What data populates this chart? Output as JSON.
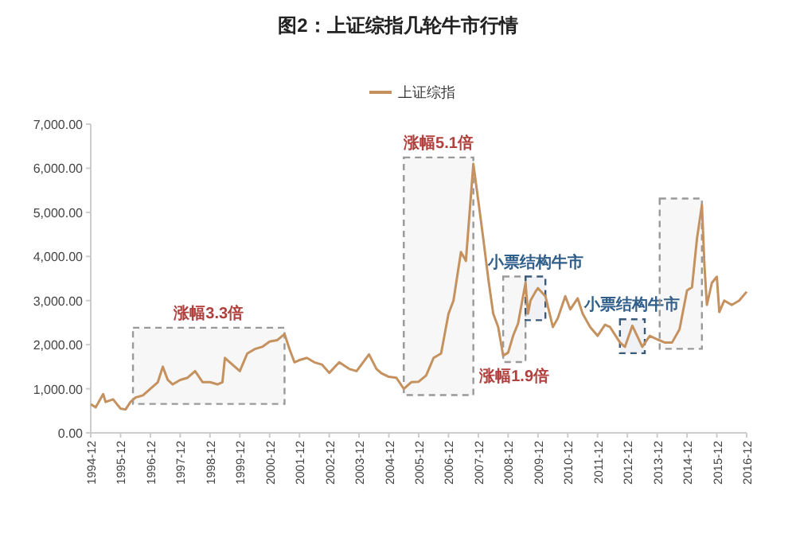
{
  "chart_data": {
    "type": "line",
    "title": "图2：上证综指几轮牛市行情",
    "x": [
      "1994-12",
      "1995-02",
      "1995-05",
      "1995-06",
      "1995-09",
      "1995-12",
      "1996-02",
      "1996-04",
      "1996-06",
      "1996-09",
      "1996-12",
      "1997-03",
      "1997-05",
      "1997-07",
      "1997-09",
      "1997-12",
      "1998-03",
      "1998-06",
      "1998-09",
      "1998-12",
      "1999-03",
      "1999-05",
      "1999-06",
      "1999-09",
      "1999-12",
      "2000-03",
      "2000-06",
      "2000-09",
      "2000-12",
      "2001-03",
      "2001-06",
      "2001-08",
      "2001-10",
      "2001-12",
      "2002-03",
      "2002-06",
      "2002-09",
      "2002-12",
      "2003-04",
      "2003-08",
      "2003-11",
      "2004-04",
      "2004-07",
      "2004-09",
      "2004-12",
      "2005-03",
      "2005-06",
      "2005-09",
      "2005-12",
      "2006-03",
      "2006-06",
      "2006-09",
      "2006-12",
      "2007-02",
      "2007-05",
      "2007-07",
      "2007-10",
      "2007-12",
      "2008-02",
      "2008-04",
      "2008-06",
      "2008-08",
      "2008-10",
      "2008-12",
      "2009-02",
      "2009-04",
      "2009-07",
      "2009-08",
      "2009-09",
      "2009-11",
      "2009-12",
      "2010-03",
      "2010-06",
      "2010-08",
      "2010-11",
      "2011-01",
      "2011-04",
      "2011-06",
      "2011-09",
      "2011-12",
      "2012-03",
      "2012-05",
      "2012-09",
      "2012-11",
      "2013-02",
      "2013-06",
      "2013-09",
      "2013-12",
      "2014-03",
      "2014-06",
      "2014-09",
      "2014-12",
      "2015-02",
      "2015-04",
      "2015-06",
      "2015-07",
      "2015-08",
      "2015-10",
      "2015-12",
      "2016-01",
      "2016-03",
      "2016-06",
      "2016-09",
      "2016-12"
    ],
    "series": [
      {
        "name": "上证综指",
        "color": "#c4915f",
        "values": [
          650,
          580,
          880,
          700,
          760,
          550,
          530,
          700,
          800,
          850,
          1000,
          1150,
          1500,
          1200,
          1100,
          1200,
          1250,
          1400,
          1150,
          1150,
          1100,
          1150,
          1700,
          1550,
          1400,
          1800,
          1900,
          1950,
          2070,
          2100,
          2240,
          1900,
          1600,
          1650,
          1700,
          1600,
          1550,
          1360,
          1600,
          1450,
          1400,
          1780,
          1450,
          1350,
          1270,
          1250,
          1000,
          1150,
          1160,
          1300,
          1700,
          1800,
          2700,
          3000,
          4100,
          3900,
          6100,
          5260,
          4400,
          3500,
          2700,
          2400,
          1750,
          1820,
          2200,
          2480,
          3400,
          2700,
          3000,
          3200,
          3280,
          3100,
          2400,
          2600,
          3100,
          2800,
          3050,
          2700,
          2400,
          2200,
          2450,
          2400,
          2050,
          1950,
          2430,
          1950,
          2200,
          2120,
          2050,
          2050,
          2350,
          3230,
          3300,
          4400,
          5170,
          3800,
          2900,
          3400,
          3540,
          2740,
          3000,
          2900,
          3000,
          3200
        ]
      }
    ],
    "xlim": [
      "1994-12",
      "2016-12"
    ],
    "xticks": [
      "1994-12",
      "1995-12",
      "1996-12",
      "1997-12",
      "1998-12",
      "1999-12",
      "2000-12",
      "2001-12",
      "2002-12",
      "2003-12",
      "2004-12",
      "2005-12",
      "2006-12",
      "2007-12",
      "2008-12",
      "2009-12",
      "2010-12",
      "2011-12",
      "2012-12",
      "2013-12",
      "2014-12",
      "2015-12",
      "2016-12"
    ],
    "ylim": [
      0,
      7000
    ],
    "yticks": [
      {
        "value": 0,
        "label": "0.00"
      },
      {
        "value": 1000,
        "label": "1,000.00"
      },
      {
        "value": 2000,
        "label": "2,000.00"
      },
      {
        "value": 3000,
        "label": "3,000.00"
      },
      {
        "value": 4000,
        "label": "4,000.00"
      },
      {
        "value": 5000,
        "label": "5,000.00"
      },
      {
        "value": 6000,
        "label": "6,000.00"
      },
      {
        "value": 7000,
        "label": "7,000.00"
      }
    ],
    "grid": false,
    "legend": "top",
    "bands": [
      {
        "axis": "x",
        "from": "1996-05",
        "to": "2001-06",
        "color": "#999999",
        "label": "涨幅3.3倍"
      },
      {
        "axis": "x",
        "from": "2005-06",
        "to": "2007-10",
        "color": "#999999",
        "label": "涨幅5.1倍"
      },
      {
        "axis": "x",
        "from": "2008-10",
        "to": "2009-07",
        "color": "#999999",
        "label": "涨幅1.9倍"
      },
      {
        "axis": "x",
        "from": "2009-07",
        "to": "2010-03",
        "color": "#3b5a7a",
        "label": "小票结构牛市"
      },
      {
        "axis": "x",
        "from": "2012-09",
        "to": "2013-07",
        "color": "#3b5a7a",
        "label": "小票结构牛市"
      },
      {
        "axis": "x",
        "from": "2014-01",
        "to": "2015-06",
        "color": "#999999"
      }
    ]
  }
}
